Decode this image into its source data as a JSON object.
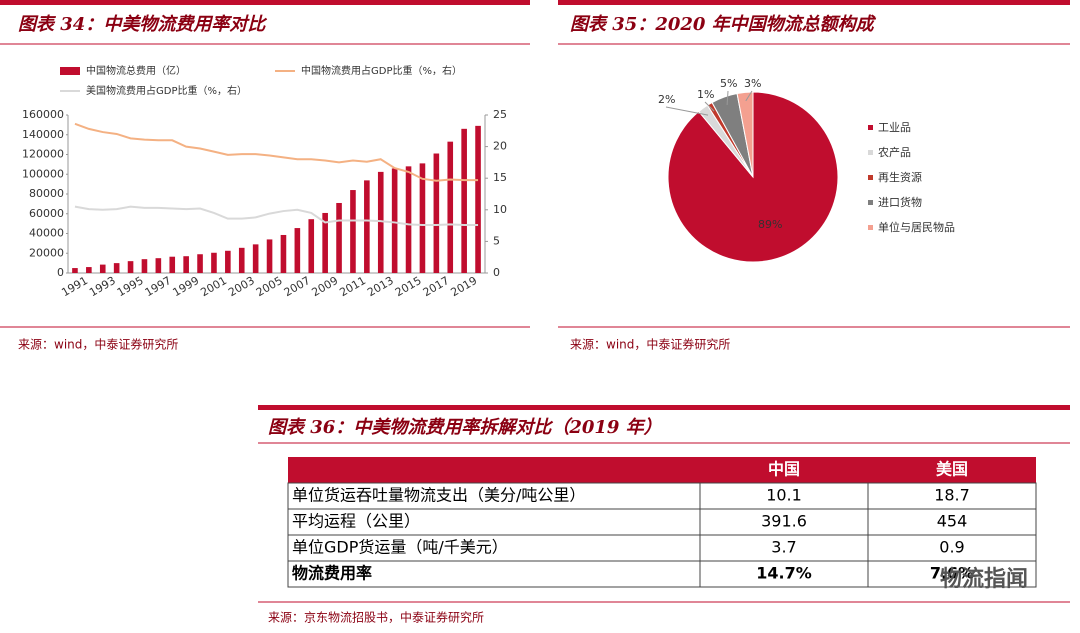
{
  "chart_data": [
    {
      "type": "bar",
      "title": "图表 34：中美物流费用率对比",
      "source": "来源：wind，中泰证券研究所",
      "categories": [
        "1991",
        null,
        "1993",
        null,
        "1995",
        null,
        "1997",
        null,
        "1999",
        null,
        "2001",
        null,
        "2003",
        null,
        "2005",
        null,
        "2007",
        null,
        "2009",
        null,
        "2011",
        null,
        "2013",
        null,
        "2015",
        null,
        "2017",
        null,
        "2019",
        null
      ],
      "series": [
        {
          "name": "中国物流总费用（亿）",
          "type": "bar",
          "color": "#c00d2e",
          "axis": "y",
          "values": [
            5000,
            6000,
            8500,
            10000,
            12000,
            14000,
            15000,
            16500,
            17000,
            19000,
            20500,
            22500,
            25500,
            29000,
            34000,
            38500,
            45500,
            54500,
            60800,
            70900,
            84000,
            93800,
            102400,
            105900,
            108000,
            111000,
            121000,
            133000,
            146000,
            149000
          ]
        },
        {
          "name": "中国物流费用占GDP比重（%，右）",
          "type": "line",
          "color": "#f4b183",
          "axis": "y2",
          "values": [
            23.6,
            22.8,
            22.3,
            22.0,
            21.3,
            21.1,
            21.0,
            21.0,
            20.0,
            19.7,
            19.2,
            18.7,
            18.8,
            18.8,
            18.6,
            18.3,
            18.0,
            18.0,
            17.8,
            17.5,
            17.8,
            17.6,
            18.0,
            16.6,
            16.0,
            14.9,
            14.6,
            14.8,
            14.7,
            14.7
          ]
        },
        {
          "name": "美国物流费用占GDP比重（%，右）",
          "type": "line",
          "color": "#d9d9d9",
          "axis": "y2",
          "values": [
            10.5,
            10.1,
            10.0,
            10.1,
            10.5,
            10.3,
            10.3,
            10.2,
            10.1,
            10.2,
            9.5,
            8.6,
            8.6,
            8.8,
            9.4,
            9.8,
            10.0,
            9.5,
            8.0,
            8.3,
            8.3,
            8.3,
            8.2,
            8.0,
            7.7,
            7.6,
            7.6,
            7.7,
            7.6,
            7.6
          ]
        }
      ],
      "ylim": [
        0,
        160000
      ],
      "yticks": [
        0,
        20000,
        40000,
        60000,
        80000,
        100000,
        120000,
        140000,
        160000
      ],
      "y2lim": [
        0,
        25
      ],
      "y2ticks": [
        0,
        5,
        10,
        15,
        20,
        25
      ],
      "grid": false,
      "legend": "top"
    },
    {
      "type": "pie",
      "title": "图表 35：2020 年中国物流总额构成",
      "source": "来源：wind，中泰证券研究所",
      "categories": [
        "工业品",
        "农产品",
        "再生资源",
        "进口货物",
        "单位与居民物品"
      ],
      "values": [
        89,
        2,
        1,
        5,
        3
      ],
      "value_labels": [
        "89%",
        "2%",
        "1%",
        "5%",
        "3%"
      ],
      "colors": [
        "#c00d2e",
        "#d9d9d9",
        "#c0392b",
        "#7f7f7f",
        "#f4a090"
      ],
      "legend": "right"
    }
  ],
  "table_figure": {
    "title": "图表 36：中美物流费用率拆解对比（2019 年）",
    "header": [
      "",
      "中国",
      "美国"
    ],
    "rows": [
      [
        "单位货运吞吐量物流支出（美分/吨公里）",
        "10.1",
        "18.7"
      ],
      [
        "平均运程（公里）",
        "391.6",
        "454"
      ],
      [
        "单位GDP货运量（吨/千美元）",
        "3.7",
        "0.9"
      ],
      [
        "物流费用率",
        "14.7%",
        "7.6%"
      ]
    ],
    "source": "来源：京东物流招股书，中泰证券研究所"
  },
  "watermark": "物流指闻"
}
